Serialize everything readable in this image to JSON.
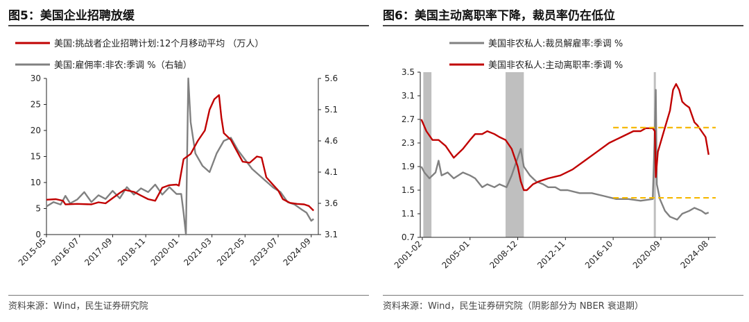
{
  "panels": [
    {
      "fig_title": "图5：美国企业招聘放缓",
      "source": "资料来源：Wind，民生证券研究院"
    },
    {
      "fig_title": "图6：美国主动离职率下降，裁员率仍在低位",
      "source": "资料来源：Wind，民生证券研究院（阴影部分为 NBER 衰退期）"
    }
  ],
  "colors": {
    "red": "#c00000",
    "gray": "#808080",
    "shade": "#bfbfbf",
    "dash": "#f5b800",
    "axis": "#222222"
  },
  "chart_data": [
    {
      "type": "line",
      "title": "",
      "x_type": "date",
      "x_range": [
        "2015-05",
        "2024-12"
      ],
      "x_ticks": [
        "2015-05",
        "2016-07",
        "2017-09",
        "2018-11",
        "2020-01",
        "2021-03",
        "2022-05",
        "2023-07",
        "2024-09"
      ],
      "y_left": {
        "range": [
          0,
          30
        ],
        "ticks": [
          0,
          5,
          10,
          15,
          20,
          25,
          30
        ]
      },
      "y_right": {
        "range": [
          3.1,
          5.6
        ],
        "ticks": [
          "3.1",
          "3.6",
          "4.1",
          "4.6",
          "5.1",
          "5.6"
        ]
      },
      "legend_position": "top-left",
      "series": [
        {
          "name": "美国:挑战者企业招聘计划:12个月移动平均 （万人）",
          "axis": "left",
          "color": "#c00000",
          "points": [
            [
              "2015-05",
              6.7
            ],
            [
              "2015-09",
              6.8
            ],
            [
              "2015-12",
              6.5
            ],
            [
              "2016-01",
              5.8
            ],
            [
              "2016-06",
              5.9
            ],
            [
              "2016-12",
              5.8
            ],
            [
              "2017-03",
              6.2
            ],
            [
              "2017-06",
              6.0
            ],
            [
              "2017-09",
              7.0
            ],
            [
              "2017-12",
              8.0
            ],
            [
              "2018-02",
              8.6
            ],
            [
              "2018-06",
              8.2
            ],
            [
              "2018-09",
              7.5
            ],
            [
              "2018-12",
              6.8
            ],
            [
              "2019-03",
              6.5
            ],
            [
              "2019-06",
              9.0
            ],
            [
              "2019-09",
              9.5
            ],
            [
              "2019-12",
              9.6
            ],
            [
              "2020-01",
              9.4
            ],
            [
              "2020-03",
              14.5
            ],
            [
              "2020-06",
              15.5
            ],
            [
              "2020-09",
              18.0
            ],
            [
              "2020-12",
              20.0
            ],
            [
              "2021-02",
              24.0
            ],
            [
              "2021-04",
              26.0
            ],
            [
              "2021-06",
              26.8
            ],
            [
              "2021-07",
              22.5
            ],
            [
              "2021-08",
              19.5
            ],
            [
              "2021-11",
              18.2
            ],
            [
              "2022-01",
              16.5
            ],
            [
              "2022-04",
              14.0
            ],
            [
              "2022-07",
              13.8
            ],
            [
              "2022-10",
              15.0
            ],
            [
              "2022-12",
              14.8
            ],
            [
              "2023-02",
              11.0
            ],
            [
              "2023-05",
              9.5
            ],
            [
              "2023-07",
              8.5
            ],
            [
              "2023-09",
              6.8
            ],
            [
              "2023-12",
              6.1
            ],
            [
              "2024-03",
              5.9
            ],
            [
              "2024-06",
              5.8
            ],
            [
              "2024-08",
              5.5
            ],
            [
              "2024-10",
              4.6
            ]
          ]
        },
        {
          "name": "美国:雇佣率:非农:季调 %（右轴）",
          "axis": "right",
          "color": "#808080",
          "points": [
            [
              "2015-05",
              3.55
            ],
            [
              "2015-08",
              3.62
            ],
            [
              "2015-11",
              3.58
            ],
            [
              "2016-01",
              3.72
            ],
            [
              "2016-03",
              3.6
            ],
            [
              "2016-06",
              3.66
            ],
            [
              "2016-09",
              3.78
            ],
            [
              "2016-12",
              3.62
            ],
            [
              "2017-03",
              3.73
            ],
            [
              "2017-06",
              3.67
            ],
            [
              "2017-09",
              3.8
            ],
            [
              "2017-12",
              3.68
            ],
            [
              "2018-03",
              3.86
            ],
            [
              "2018-06",
              3.74
            ],
            [
              "2018-09",
              3.84
            ],
            [
              "2018-12",
              3.78
            ],
            [
              "2019-03",
              3.9
            ],
            [
              "2019-06",
              3.74
            ],
            [
              "2019-09",
              3.86
            ],
            [
              "2019-12",
              3.75
            ],
            [
              "2020-02",
              3.75
            ],
            [
              "2020-03",
              3.45
            ],
            [
              "2020-04",
              3.1
            ],
            [
              "2020-05",
              5.6
            ],
            [
              "2020-06",
              4.9
            ],
            [
              "2020-08",
              4.4
            ],
            [
              "2020-11",
              4.2
            ],
            [
              "2021-02",
              4.1
            ],
            [
              "2021-05",
              4.4
            ],
            [
              "2021-08",
              4.6
            ],
            [
              "2021-11",
              4.65
            ],
            [
              "2022-02",
              4.45
            ],
            [
              "2022-05",
              4.3
            ],
            [
              "2022-08",
              4.15
            ],
            [
              "2022-11",
              4.05
            ],
            [
              "2023-02",
              3.95
            ],
            [
              "2023-05",
              3.85
            ],
            [
              "2023-08",
              3.78
            ],
            [
              "2023-11",
              3.62
            ],
            [
              "2024-02",
              3.58
            ],
            [
              "2024-05",
              3.5
            ],
            [
              "2024-07",
              3.45
            ],
            [
              "2024-09",
              3.32
            ],
            [
              "2024-10",
              3.35
            ]
          ]
        }
      ]
    },
    {
      "type": "line",
      "title": "",
      "x_type": "date",
      "x_range": [
        "2000-12",
        "2025-03"
      ],
      "x_ticks": [
        "2001-02",
        "2005-01",
        "2008-12",
        "2012-11",
        "2016-10",
        "2020-09",
        "2024-08"
      ],
      "y": {
        "range": [
          0.7,
          3.5
        ],
        "ticks": [
          "0.7",
          "1.1",
          "1.5",
          "1.9",
          "2.3",
          "2.7",
          "3.1",
          "3.5"
        ]
      },
      "legend_position": "top-left",
      "shaded_periods": [
        [
          "2001-03",
          "2001-11"
        ],
        [
          "2007-12",
          "2009-06"
        ],
        [
          "2020-02",
          "2020-04"
        ]
      ],
      "reference_lines": [
        {
          "y": 2.56,
          "from": "2016-10",
          "to": "2025-03",
          "color": "#f5b800",
          "style": "dashed"
        },
        {
          "y": 1.37,
          "from": "2016-10",
          "to": "2025-03",
          "color": "#f5b800",
          "style": "dashed"
        }
      ],
      "series": [
        {
          "name": "美国非农私人:裁员解雇率:季调 %",
          "color": "#808080",
          "points": [
            [
              "2001-01",
              1.9
            ],
            [
              "2001-04",
              1.8
            ],
            [
              "2001-09",
              1.7
            ],
            [
              "2002-03",
              1.8
            ],
            [
              "2002-06",
              2.0
            ],
            [
              "2002-09",
              1.75
            ],
            [
              "2003-03",
              1.8
            ],
            [
              "2003-09",
              1.7
            ],
            [
              "2004-06",
              1.8
            ],
            [
              "2005-01",
              1.75
            ],
            [
              "2005-06",
              1.7
            ],
            [
              "2006-01",
              1.55
            ],
            [
              "2006-06",
              1.6
            ],
            [
              "2007-01",
              1.55
            ],
            [
              "2007-06",
              1.6
            ],
            [
              "2008-01",
              1.55
            ],
            [
              "2008-06",
              1.75
            ],
            [
              "2008-12",
              2.05
            ],
            [
              "2009-03",
              2.2
            ],
            [
              "2009-06",
              1.9
            ],
            [
              "2009-12",
              1.75
            ],
            [
              "2010-06",
              1.65
            ],
            [
              "2011-01",
              1.6
            ],
            [
              "2011-06",
              1.55
            ],
            [
              "2012-01",
              1.55
            ],
            [
              "2012-06",
              1.5
            ],
            [
              "2013-01",
              1.5
            ],
            [
              "2014-01",
              1.45
            ],
            [
              "2015-01",
              1.45
            ],
            [
              "2016-01",
              1.4
            ],
            [
              "2017-01",
              1.35
            ],
            [
              "2018-01",
              1.35
            ],
            [
              "2019-01",
              1.32
            ],
            [
              "2020-01",
              1.35
            ],
            [
              "2020-03",
              2.5
            ],
            [
              "2020-04",
              3.2
            ],
            [
              "2020-05",
              1.6
            ],
            [
              "2020-08",
              1.35
            ],
            [
              "2021-01",
              1.15
            ],
            [
              "2021-06",
              1.05
            ],
            [
              "2022-01",
              1.0
            ],
            [
              "2022-06",
              1.1
            ],
            [
              "2023-01",
              1.15
            ],
            [
              "2023-06",
              1.2
            ],
            [
              "2024-01",
              1.15
            ],
            [
              "2024-05",
              1.1
            ],
            [
              "2024-08",
              1.12
            ]
          ]
        },
        {
          "name": "美国非农私人:主动离职率:季调 %",
          "color": "#c00000",
          "points": [
            [
              "2001-01",
              2.7
            ],
            [
              "2001-06",
              2.5
            ],
            [
              "2001-12",
              2.35
            ],
            [
              "2002-06",
              2.35
            ],
            [
              "2003-01",
              2.25
            ],
            [
              "2003-09",
              2.05
            ],
            [
              "2004-06",
              2.2
            ],
            [
              "2005-01",
              2.35
            ],
            [
              "2005-06",
              2.45
            ],
            [
              "2006-01",
              2.45
            ],
            [
              "2006-06",
              2.5
            ],
            [
              "2007-01",
              2.45
            ],
            [
              "2007-06",
              2.4
            ],
            [
              "2007-12",
              2.35
            ],
            [
              "2008-06",
              2.2
            ],
            [
              "2008-12",
              1.9
            ],
            [
              "2009-03",
              1.65
            ],
            [
              "2009-06",
              1.5
            ],
            [
              "2009-09",
              1.5
            ],
            [
              "2010-03",
              1.6
            ],
            [
              "2010-09",
              1.65
            ],
            [
              "2011-06",
              1.7
            ],
            [
              "2012-06",
              1.75
            ],
            [
              "2013-06",
              1.85
            ],
            [
              "2014-06",
              2.0
            ],
            [
              "2015-06",
              2.15
            ],
            [
              "2016-06",
              2.3
            ],
            [
              "2017-06",
              2.4
            ],
            [
              "2018-06",
              2.5
            ],
            [
              "2019-01",
              2.5
            ],
            [
              "2019-06",
              2.55
            ],
            [
              "2020-01",
              2.55
            ],
            [
              "2020-03",
              2.5
            ],
            [
              "2020-04",
              1.72
            ],
            [
              "2020-06",
              2.15
            ],
            [
              "2020-12",
              2.5
            ],
            [
              "2021-06",
              2.85
            ],
            [
              "2021-09",
              3.2
            ],
            [
              "2021-12",
              3.3
            ],
            [
              "2022-03",
              3.2
            ],
            [
              "2022-06",
              3.0
            ],
            [
              "2022-09",
              2.95
            ],
            [
              "2023-01",
              2.9
            ],
            [
              "2023-06",
              2.65
            ],
            [
              "2023-09",
              2.6
            ],
            [
              "2024-01",
              2.5
            ],
            [
              "2024-05",
              2.4
            ],
            [
              "2024-08",
              2.1
            ]
          ]
        }
      ]
    }
  ]
}
